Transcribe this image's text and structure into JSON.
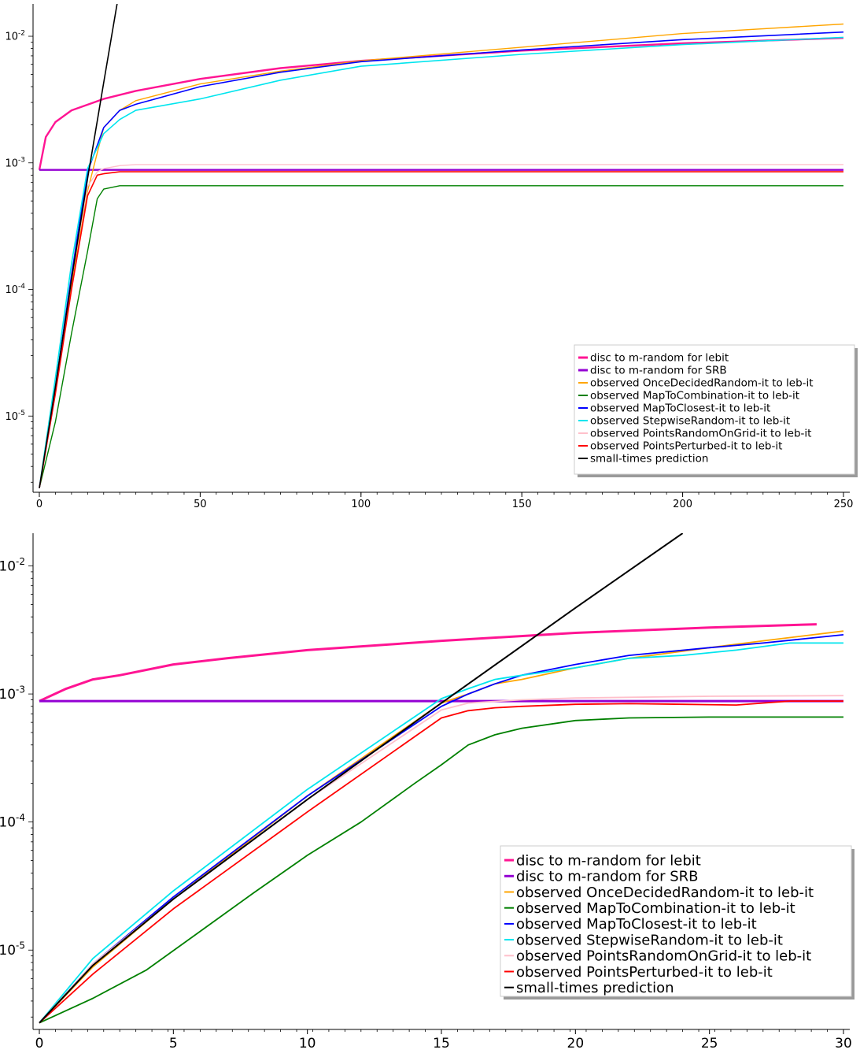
{
  "chart_data": [
    {
      "type": "line",
      "title": "",
      "xlabel": "",
      "ylabel": "",
      "xlim": [
        0,
        250
      ],
      "ylim": [
        2.5e-06,
        0.018
      ],
      "yscale": "log",
      "grid": false,
      "legend_placement": "bottom-right",
      "x_ticks": [
        0,
        50,
        100,
        150,
        200,
        250
      ],
      "x_tick_labels": [
        "0",
        "50",
        "100",
        "150",
        "200",
        "250"
      ],
      "y_ticks": [
        1e-05,
        0.0001,
        0.001,
        0.01
      ],
      "y_tick_labels": [
        {
          "base": "10",
          "exp": "-5"
        },
        {
          "base": "10",
          "exp": "-4"
        },
        {
          "base": "10",
          "exp": "-3"
        },
        {
          "base": "10",
          "exp": "-2"
        }
      ],
      "series": [
        {
          "name": "disc to m-random for lebit",
          "color": "#ff1493",
          "style": "solid",
          "width": 2.4,
          "x": [
            0,
            2,
            5,
            10,
            20,
            30,
            50,
            75,
            100,
            150,
            200,
            250
          ],
          "y": [
            0.00088,
            0.0016,
            0.0021,
            0.0026,
            0.0032,
            0.0037,
            0.0046,
            0.0056,
            0.0064,
            0.0077,
            0.0088,
            0.0097
          ]
        },
        {
          "name": "disc to m-random for SRB",
          "color": "#9400d3",
          "style": "solid",
          "width": 2.4,
          "x": [
            0,
            250
          ],
          "y": [
            0.00088,
            0.00088
          ]
        },
        {
          "name": "observed OnceDecidedRandom-it to leb-it",
          "color": "#ffa500",
          "style": "solid",
          "width": 1.4,
          "x": [
            0,
            5,
            10,
            15,
            20,
            25,
            30,
            50,
            75,
            100,
            150,
            200,
            250
          ],
          "y": [
            2.7e-06,
            1.6e-05,
            0.00011,
            0.0006,
            0.0019,
            0.0026,
            0.0031,
            0.0042,
            0.0053,
            0.0064,
            0.0082,
            0.0105,
            0.0125
          ]
        },
        {
          "name": "observed MapToCombination-it to leb-it",
          "color": "#008000",
          "style": "solid",
          "width": 1.4,
          "x": [
            0,
            5,
            10,
            15,
            18,
            20,
            25,
            30,
            250
          ],
          "y": [
            2.7e-06,
            9e-06,
            4.5e-05,
            0.0002,
            0.00052,
            0.00062,
            0.00066,
            0.00066,
            0.00066
          ]
        },
        {
          "name": "observed MapToClosest-it to leb-it",
          "color": "#0000ff",
          "style": "solid",
          "width": 1.6,
          "x": [
            0,
            5,
            10,
            15,
            20,
            25,
            30,
            50,
            75,
            100,
            150,
            200,
            250
          ],
          "y": [
            2.7e-06,
            1.7e-05,
            0.00013,
            0.00085,
            0.0019,
            0.0026,
            0.0029,
            0.004,
            0.0052,
            0.0063,
            0.0078,
            0.0094,
            0.0108
          ]
        },
        {
          "name": "observed StepwiseRandom-it to leb-it",
          "color": "#00e5ee",
          "style": "solid",
          "width": 1.6,
          "x": [
            0,
            5,
            10,
            15,
            20,
            25,
            30,
            50,
            75,
            100,
            150,
            200,
            250
          ],
          "y": [
            2.7e-06,
            2e-05,
            0.00016,
            0.0009,
            0.0017,
            0.0022,
            0.0026,
            0.0032,
            0.0045,
            0.0058,
            0.0072,
            0.0086,
            0.0098
          ]
        },
        {
          "name": "observed PointsRandomOnGrid-it to leb-it",
          "color": "#ffc0cb",
          "style": "solid",
          "width": 1.4,
          "x": [
            0,
            5,
            10,
            15,
            18,
            20,
            25,
            30,
            250
          ],
          "y": [
            2.7e-06,
            1.7e-05,
            0.00012,
            0.00065,
            0.00085,
            0.0009,
            0.00095,
            0.00097,
            0.00097
          ]
        },
        {
          "name": "observed PointsPerturbed-it to leb-it",
          "color": "#ff0000",
          "style": "solid",
          "width": 1.6,
          "x": [
            0,
            5,
            10,
            15,
            18,
            20,
            25,
            30,
            250
          ],
          "y": [
            2.7e-06,
            1.5e-05,
            0.0001,
            0.00055,
            0.0008,
            0.00082,
            0.00085,
            0.00085,
            0.00085
          ]
        },
        {
          "name": "small-times prediction",
          "color": "#000000",
          "style": "solid",
          "width": 1.6,
          "x": [
            0,
            5,
            10,
            15,
            20,
            25
          ],
          "y": [
            2.7e-06,
            1.7e-05,
            0.00012,
            0.00075,
            0.0043,
            0.024
          ]
        }
      ]
    },
    {
      "type": "line",
      "title": "",
      "xlabel": "",
      "ylabel": "",
      "xlim": [
        0,
        30
      ],
      "ylim": [
        2.4e-06,
        0.018
      ],
      "yscale": "log",
      "grid": false,
      "legend_placement": "bottom-right",
      "x_ticks": [
        0,
        5,
        10,
        15,
        20,
        25,
        30
      ],
      "x_tick_labels": [
        "0",
        "5",
        "10",
        "15",
        "20",
        "25",
        "30"
      ],
      "y_ticks": [
        1e-05,
        0.0001,
        0.001,
        0.01
      ],
      "y_tick_labels": [
        {
          "base": "10",
          "exp": "-5"
        },
        {
          "base": "10",
          "exp": "-4"
        },
        {
          "base": "10",
          "exp": "-3"
        },
        {
          "base": "10",
          "exp": "-2"
        }
      ],
      "series": [
        {
          "name": "disc to m-random for lebit",
          "color": "#ff1493",
          "style": "solid",
          "width": 3,
          "x": [
            0,
            1,
            2,
            3,
            5,
            7,
            10,
            15,
            20,
            25,
            29
          ],
          "y": [
            0.00088,
            0.0011,
            0.0013,
            0.0014,
            0.0017,
            0.0019,
            0.0022,
            0.0026,
            0.003,
            0.0033,
            0.0035
          ]
        },
        {
          "name": "disc to m-random for SRB",
          "color": "#9400d3",
          "style": "solid",
          "width": 3,
          "x": [
            0,
            30
          ],
          "y": [
            0.00088,
            0.00088
          ]
        },
        {
          "name": "observed OnceDecidedRandom-it to leb-it",
          "color": "#ffa500",
          "style": "solid",
          "width": 1.8,
          "x": [
            0,
            2,
            5,
            10,
            15,
            16,
            17,
            18,
            20,
            22,
            25,
            27,
            30
          ],
          "y": [
            2.7e-06,
            7.4e-06,
            2.5e-05,
            0.00016,
            0.00085,
            0.001,
            0.0012,
            0.0013,
            0.0016,
            0.0019,
            0.0023,
            0.0026,
            0.0031
          ]
        },
        {
          "name": "observed MapToCombination-it to leb-it",
          "color": "#008000",
          "style": "solid",
          "width": 1.8,
          "x": [
            0,
            2,
            4,
            6,
            8,
            10,
            12,
            14,
            15,
            16,
            17,
            18,
            20,
            22,
            25,
            30
          ],
          "y": [
            2.7e-06,
            4.2e-06,
            7e-06,
            1.4e-05,
            2.8e-05,
            5.5e-05,
            0.0001,
            0.0002,
            0.00028,
            0.0004,
            0.00048,
            0.00054,
            0.00062,
            0.00065,
            0.00066,
            0.00066
          ]
        },
        {
          "name": "observed MapToClosest-it to leb-it",
          "color": "#0000ff",
          "style": "solid",
          "width": 1.8,
          "x": [
            0,
            2,
            5,
            10,
            15,
            16,
            17,
            18,
            20,
            22,
            25,
            27,
            30
          ],
          "y": [
            2.7e-06,
            7.8e-06,
            2.6e-05,
            0.00016,
            0.0008,
            0.001,
            0.0012,
            0.0014,
            0.0017,
            0.002,
            0.0023,
            0.0025,
            0.0029
          ]
        },
        {
          "name": "observed StepwiseRandom-it to leb-it",
          "color": "#00e5ee",
          "style": "solid",
          "width": 1.8,
          "x": [
            0,
            2,
            5,
            10,
            15,
            16,
            17,
            18,
            20,
            22,
            24,
            26,
            28,
            30
          ],
          "y": [
            2.7e-06,
            8.6e-06,
            2.9e-05,
            0.00018,
            0.00092,
            0.0011,
            0.0013,
            0.0014,
            0.0016,
            0.0019,
            0.002,
            0.0022,
            0.0025,
            0.0025
          ]
        },
        {
          "name": "observed PointsRandomOnGrid-it to leb-it",
          "color": "#ffc0cb",
          "style": "solid",
          "width": 1.8,
          "x": [
            0,
            2,
            5,
            10,
            15,
            16,
            18,
            20,
            25,
            30
          ],
          "y": [
            2.7e-06,
            7.8e-06,
            2.5e-05,
            0.00015,
            0.00075,
            0.00085,
            0.0009,
            0.00093,
            0.00096,
            0.00097
          ]
        },
        {
          "name": "observed PointsPerturbed-it to leb-it",
          "color": "#ff0000",
          "style": "solid",
          "width": 1.8,
          "x": [
            0,
            2,
            5,
            10,
            15,
            16,
            17,
            18,
            20,
            22,
            24,
            26,
            28,
            30
          ],
          "y": [
            2.7e-06,
            6.5e-06,
            2.1e-05,
            0.00012,
            0.00065,
            0.00074,
            0.00078,
            0.0008,
            0.00083,
            0.00084,
            0.00083,
            0.00082,
            0.00088,
            0.00088
          ]
        },
        {
          "name": "small-times prediction",
          "color": "#000000",
          "style": "solid",
          "width": 2,
          "x": [
            0,
            2,
            5,
            10,
            15,
            20,
            24
          ],
          "y": [
            2.7e-06,
            7.6e-06,
            2.5e-05,
            0.00015,
            0.00085,
            0.0047,
            0.018
          ]
        }
      ]
    }
  ]
}
